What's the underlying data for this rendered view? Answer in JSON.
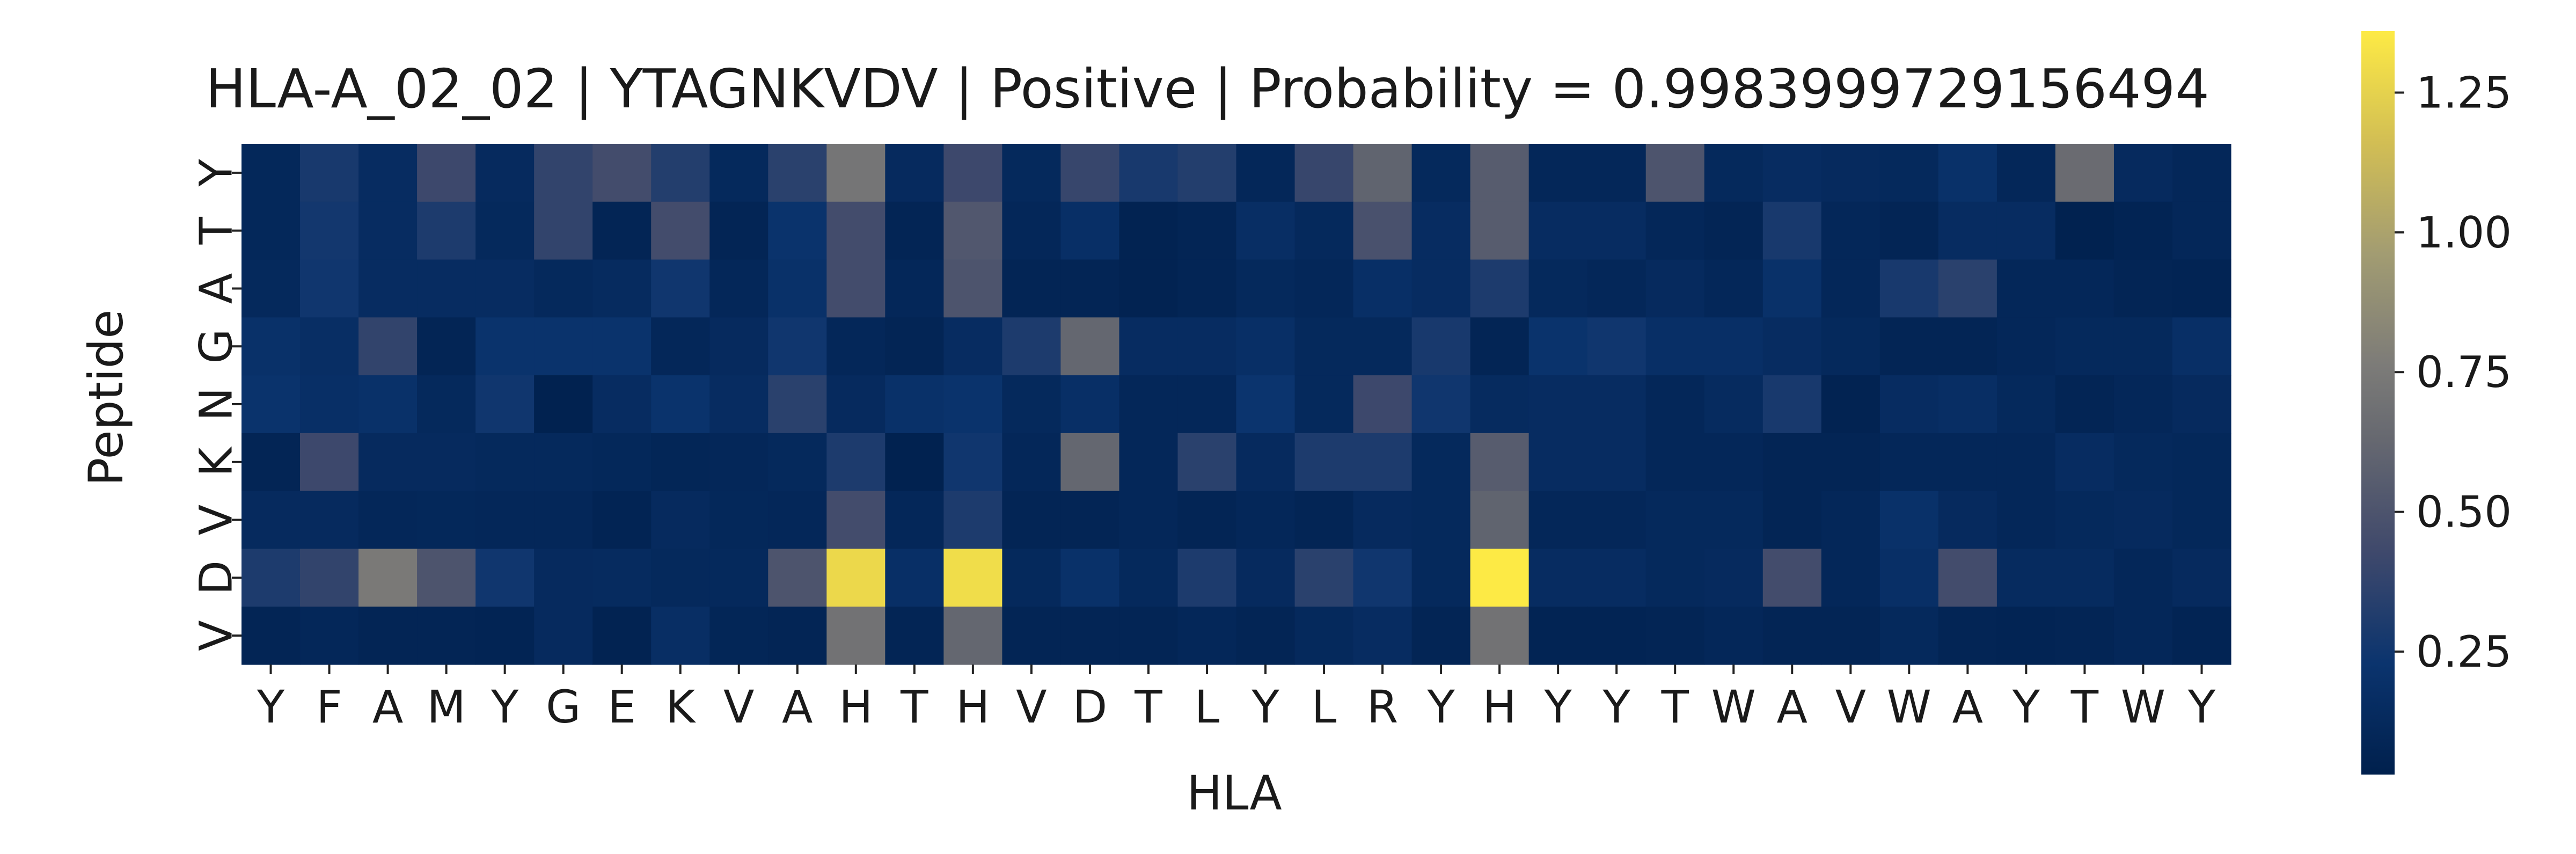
{
  "chart_data": {
    "type": "heatmap",
    "title": "HLA-A_02_02 | YTAGNKVDV | Positive | Probability = 0.9983999729156494",
    "xlabel": "HLA",
    "ylabel": "Peptide",
    "x": [
      "Y",
      "F",
      "A",
      "M",
      "Y",
      "G",
      "E",
      "K",
      "V",
      "A",
      "H",
      "T",
      "H",
      "V",
      "D",
      "T",
      "L",
      "Y",
      "L",
      "R",
      "Y",
      "H",
      "Y",
      "Y",
      "T",
      "W",
      "A",
      "V",
      "W",
      "A",
      "Y",
      "T",
      "W",
      "Y"
    ],
    "y": [
      "Y",
      "T",
      "A",
      "G",
      "N",
      "K",
      "V",
      "D",
      "V"
    ],
    "colormap": "cividis",
    "vmin": 0.03,
    "vmax": 1.36,
    "colorbar_ticks": [
      {
        "value": 0.25,
        "label": "0.25"
      },
      {
        "value": 0.5,
        "label": "0.50"
      },
      {
        "value": 0.75,
        "label": "0.75"
      },
      {
        "value": 1.0,
        "label": "1.00"
      },
      {
        "value": 1.25,
        "label": "1.25"
      }
    ],
    "values": [
      [
        0.11,
        0.28,
        0.15,
        0.42,
        0.13,
        0.38,
        0.45,
        0.32,
        0.12,
        0.35,
        0.72,
        0.13,
        0.42,
        0.12,
        0.4,
        0.28,
        0.32,
        0.1,
        0.4,
        0.6,
        0.12,
        0.55,
        0.1,
        0.1,
        0.5,
        0.12,
        0.15,
        0.13,
        0.12,
        0.2,
        0.1,
        0.65,
        0.13,
        0.1
      ],
      [
        0.11,
        0.26,
        0.15,
        0.3,
        0.12,
        0.38,
        0.08,
        0.45,
        0.08,
        0.22,
        0.45,
        0.08,
        0.52,
        0.1,
        0.18,
        0.06,
        0.08,
        0.17,
        0.12,
        0.48,
        0.15,
        0.55,
        0.15,
        0.15,
        0.1,
        0.08,
        0.28,
        0.1,
        0.08,
        0.15,
        0.15,
        0.05,
        0.07,
        0.1
      ],
      [
        0.12,
        0.25,
        0.15,
        0.15,
        0.15,
        0.12,
        0.14,
        0.25,
        0.1,
        0.2,
        0.45,
        0.1,
        0.5,
        0.08,
        0.08,
        0.06,
        0.08,
        0.12,
        0.1,
        0.18,
        0.15,
        0.3,
        0.12,
        0.1,
        0.13,
        0.1,
        0.2,
        0.1,
        0.28,
        0.35,
        0.1,
        0.1,
        0.08,
        0.07
      ],
      [
        0.2,
        0.17,
        0.38,
        0.08,
        0.22,
        0.22,
        0.22,
        0.1,
        0.13,
        0.25,
        0.1,
        0.08,
        0.15,
        0.3,
        0.62,
        0.15,
        0.15,
        0.18,
        0.12,
        0.12,
        0.28,
        0.08,
        0.22,
        0.25,
        0.18,
        0.18,
        0.15,
        0.12,
        0.08,
        0.08,
        0.1,
        0.12,
        0.12,
        0.18
      ],
      [
        0.22,
        0.18,
        0.2,
        0.12,
        0.25,
        0.05,
        0.15,
        0.22,
        0.15,
        0.35,
        0.13,
        0.2,
        0.22,
        0.12,
        0.18,
        0.1,
        0.1,
        0.23,
        0.12,
        0.42,
        0.25,
        0.14,
        0.15,
        0.15,
        0.1,
        0.14,
        0.28,
        0.06,
        0.15,
        0.17,
        0.12,
        0.08,
        0.1,
        0.13
      ],
      [
        0.08,
        0.42,
        0.13,
        0.13,
        0.12,
        0.12,
        0.11,
        0.09,
        0.1,
        0.12,
        0.3,
        0.05,
        0.25,
        0.1,
        0.62,
        0.1,
        0.35,
        0.13,
        0.3,
        0.3,
        0.12,
        0.55,
        0.15,
        0.15,
        0.1,
        0.1,
        0.08,
        0.08,
        0.1,
        0.1,
        0.1,
        0.15,
        0.12,
        0.11
      ],
      [
        0.13,
        0.13,
        0.1,
        0.11,
        0.1,
        0.1,
        0.07,
        0.13,
        0.11,
        0.1,
        0.45,
        0.1,
        0.3,
        0.08,
        0.08,
        0.1,
        0.08,
        0.1,
        0.08,
        0.13,
        0.12,
        0.6,
        0.1,
        0.1,
        0.12,
        0.12,
        0.08,
        0.1,
        0.2,
        0.13,
        0.1,
        0.12,
        0.13,
        0.11
      ],
      [
        0.3,
        0.38,
        0.75,
        0.5,
        0.25,
        0.13,
        0.14,
        0.12,
        0.12,
        0.5,
        1.28,
        0.18,
        1.3,
        0.12,
        0.2,
        0.12,
        0.3,
        0.13,
        0.35,
        0.25,
        0.12,
        1.36,
        0.15,
        0.15,
        0.12,
        0.13,
        0.45,
        0.1,
        0.18,
        0.45,
        0.14,
        0.14,
        0.1,
        0.13
      ],
      [
        0.08,
        0.1,
        0.08,
        0.08,
        0.07,
        0.13,
        0.06,
        0.17,
        0.09,
        0.08,
        0.7,
        0.08,
        0.62,
        0.08,
        0.08,
        0.08,
        0.1,
        0.08,
        0.12,
        0.15,
        0.08,
        0.7,
        0.07,
        0.07,
        0.08,
        0.1,
        0.08,
        0.08,
        0.12,
        0.08,
        0.07,
        0.08,
        0.1,
        0.07
      ]
    ]
  }
}
